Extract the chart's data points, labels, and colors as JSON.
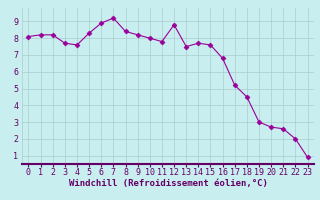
{
  "x": [
    0,
    1,
    2,
    3,
    4,
    5,
    6,
    7,
    8,
    9,
    10,
    11,
    12,
    13,
    14,
    15,
    16,
    17,
    18,
    19,
    20,
    21,
    22,
    23
  ],
  "y": [
    8.1,
    8.2,
    8.2,
    7.7,
    7.6,
    8.3,
    8.9,
    9.2,
    8.4,
    8.2,
    8.0,
    7.8,
    8.8,
    7.5,
    7.7,
    7.6,
    6.8,
    5.2,
    4.5,
    3.0,
    2.7,
    2.6,
    2.0,
    0.9
  ],
  "line_color": "#990099",
  "marker": "D",
  "marker_size": 2.5,
  "bg_color": "#c8eef0",
  "grid_color": "#aacccc",
  "xlabel": "Windchill (Refroidissement éolien,°C)",
  "xlabel_color": "#660066",
  "xlabel_fontsize": 6.5,
  "ylabel_ticks": [
    1,
    2,
    3,
    4,
    5,
    6,
    7,
    8,
    9
  ],
  "xlim": [
    -0.5,
    23.5
  ],
  "ylim": [
    0.5,
    9.8
  ],
  "tick_fontsize": 6.0,
  "tick_color": "#660066",
  "spine_color": "#660066",
  "axis_bottom_color": "#660066"
}
